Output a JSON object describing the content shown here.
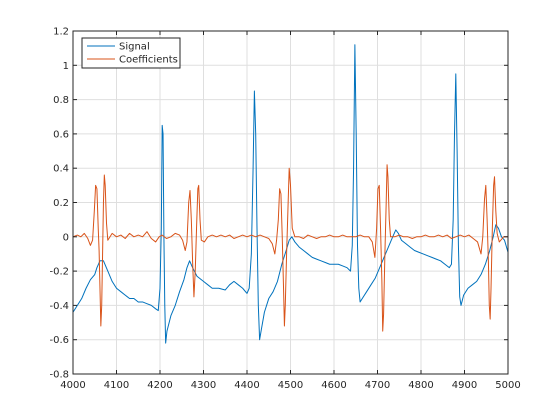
{
  "chart_data": {
    "type": "line",
    "title": "",
    "xlabel": "",
    "ylabel": "",
    "xlim": [
      4000,
      5000
    ],
    "ylim": [
      -0.8,
      1.2
    ],
    "x_ticks": [
      4000,
      4100,
      4200,
      4300,
      4400,
      4500,
      4600,
      4700,
      4800,
      4900,
      5000
    ],
    "y_ticks": [
      -0.8,
      -0.6,
      -0.4,
      -0.2,
      0,
      0.2,
      0.4,
      0.6,
      0.8,
      1,
      1.2
    ],
    "x_tick_labels": [
      "4000",
      "4100",
      "4200",
      "4300",
      "4400",
      "4500",
      "4600",
      "4700",
      "4800",
      "4900",
      "5000"
    ],
    "y_tick_labels": [
      "-0.8",
      "-0.6",
      "-0.4",
      "-0.2",
      "0",
      "0.2",
      "0.4",
      "0.6",
      "0.8",
      "1",
      "1.2"
    ],
    "grid": true,
    "legend_position": "top-left",
    "series": [
      {
        "name": "Signal",
        "color": "#0072BD",
        "points": [
          [
            4000,
            -0.44
          ],
          [
            4010,
            -0.4
          ],
          [
            4020,
            -0.36
          ],
          [
            4030,
            -0.3
          ],
          [
            4040,
            -0.25
          ],
          [
            4050,
            -0.22
          ],
          [
            4055,
            -0.18
          ],
          [
            4062,
            -0.14
          ],
          [
            4070,
            -0.14
          ],
          [
            4080,
            -0.2
          ],
          [
            4090,
            -0.26
          ],
          [
            4100,
            -0.3
          ],
          [
            4110,
            -0.32
          ],
          [
            4120,
            -0.34
          ],
          [
            4130,
            -0.36
          ],
          [
            4140,
            -0.36
          ],
          [
            4150,
            -0.38
          ],
          [
            4160,
            -0.38
          ],
          [
            4170,
            -0.39
          ],
          [
            4180,
            -0.4
          ],
          [
            4190,
            -0.42
          ],
          [
            4196,
            -0.43
          ],
          [
            4200,
            -0.3
          ],
          [
            4203,
            0.05
          ],
          [
            4205,
            0.65
          ],
          [
            4207,
            0.6
          ],
          [
            4209,
            0.0
          ],
          [
            4211,
            -0.4
          ],
          [
            4213,
            -0.62
          ],
          [
            4216,
            -0.55
          ],
          [
            4225,
            -0.46
          ],
          [
            4235,
            -0.4
          ],
          [
            4245,
            -0.32
          ],
          [
            4255,
            -0.25
          ],
          [
            4262,
            -0.18
          ],
          [
            4268,
            -0.14
          ],
          [
            4275,
            -0.18
          ],
          [
            4285,
            -0.23
          ],
          [
            4300,
            -0.26
          ],
          [
            4310,
            -0.28
          ],
          [
            4320,
            -0.3
          ],
          [
            4335,
            -0.3
          ],
          [
            4350,
            -0.31
          ],
          [
            4360,
            -0.28
          ],
          [
            4370,
            -0.26
          ],
          [
            4380,
            -0.28
          ],
          [
            4390,
            -0.3
          ],
          [
            4400,
            -0.33
          ],
          [
            4405,
            -0.3
          ],
          [
            4410,
            -0.1
          ],
          [
            4414,
            0.4
          ],
          [
            4417,
            0.85
          ],
          [
            4420,
            0.6
          ],
          [
            4423,
            0.05
          ],
          [
            4426,
            -0.4
          ],
          [
            4429,
            -0.6
          ],
          [
            4433,
            -0.54
          ],
          [
            4440,
            -0.44
          ],
          [
            4450,
            -0.36
          ],
          [
            4460,
            -0.32
          ],
          [
            4470,
            -0.26
          ],
          [
            4480,
            -0.16
          ],
          [
            4490,
            -0.08
          ],
          [
            4497,
            -0.02
          ],
          [
            4503,
            0.0
          ],
          [
            4510,
            -0.03
          ],
          [
            4520,
            -0.06
          ],
          [
            4530,
            -0.08
          ],
          [
            4540,
            -0.1
          ],
          [
            4550,
            -0.12
          ],
          [
            4560,
            -0.13
          ],
          [
            4570,
            -0.14
          ],
          [
            4580,
            -0.15
          ],
          [
            4590,
            -0.16
          ],
          [
            4600,
            -0.16
          ],
          [
            4610,
            -0.16
          ],
          [
            4620,
            -0.17
          ],
          [
            4630,
            -0.18
          ],
          [
            4638,
            -0.2
          ],
          [
            4642,
            -0.05
          ],
          [
            4645,
            0.4
          ],
          [
            4648,
            1.12
          ],
          [
            4651,
            0.6
          ],
          [
            4654,
            -0.05
          ],
          [
            4657,
            -0.3
          ],
          [
            4660,
            -0.38
          ],
          [
            4665,
            -0.36
          ],
          [
            4675,
            -0.32
          ],
          [
            4685,
            -0.28
          ],
          [
            4695,
            -0.24
          ],
          [
            4705,
            -0.18
          ],
          [
            4715,
            -0.12
          ],
          [
            4725,
            -0.06
          ],
          [
            4735,
            0.0
          ],
          [
            4742,
            0.04
          ],
          [
            4748,
            0.02
          ],
          [
            4755,
            -0.02
          ],
          [
            4765,
            -0.04
          ],
          [
            4775,
            -0.06
          ],
          [
            4785,
            -0.08
          ],
          [
            4795,
            -0.09
          ],
          [
            4805,
            -0.1
          ],
          [
            4815,
            -0.11
          ],
          [
            4825,
            -0.12
          ],
          [
            4835,
            -0.13
          ],
          [
            4845,
            -0.14
          ],
          [
            4855,
            -0.16
          ],
          [
            4865,
            -0.18
          ],
          [
            4870,
            -0.16
          ],
          [
            4874,
            0.1
          ],
          [
            4877,
            0.6
          ],
          [
            4880,
            0.95
          ],
          [
            4883,
            0.5
          ],
          [
            4886,
            -0.05
          ],
          [
            4889,
            -0.35
          ],
          [
            4892,
            -0.4
          ],
          [
            4898,
            -0.34
          ],
          [
            4908,
            -0.3
          ],
          [
            4918,
            -0.28
          ],
          [
            4928,
            -0.26
          ],
          [
            4938,
            -0.22
          ],
          [
            4948,
            -0.16
          ],
          [
            4958,
            -0.08
          ],
          [
            4966,
            0.0
          ],
          [
            4972,
            0.07
          ],
          [
            4978,
            0.05
          ],
          [
            4985,
            0.0
          ],
          [
            4992,
            -0.02
          ],
          [
            5000,
            -0.09
          ]
        ]
      },
      {
        "name": "Coefficients",
        "color": "#D95319",
        "points": [
          [
            4000,
            0.0
          ],
          [
            4010,
            0.01
          ],
          [
            4018,
            0.0
          ],
          [
            4026,
            0.02
          ],
          [
            4034,
            -0.01
          ],
          [
            4040,
            -0.05
          ],
          [
            4045,
            -0.02
          ],
          [
            4049,
            0.15
          ],
          [
            4052,
            0.3
          ],
          [
            4055,
            0.28
          ],
          [
            4058,
            0.05
          ],
          [
            4060,
            -0.08
          ],
          [
            4062,
            -0.3
          ],
          [
            4064,
            -0.52
          ],
          [
            4066,
            -0.4
          ],
          [
            4068,
            -0.1
          ],
          [
            4070,
            0.2
          ],
          [
            4072,
            0.36
          ],
          [
            4074,
            0.3
          ],
          [
            4077,
            0.08
          ],
          [
            4080,
            -0.02
          ],
          [
            4090,
            0.02
          ],
          [
            4100,
            0.0
          ],
          [
            4110,
            0.01
          ],
          [
            4120,
            -0.01
          ],
          [
            4130,
            0.02
          ],
          [
            4140,
            0.0
          ],
          [
            4150,
            0.01
          ],
          [
            4160,
            0.0
          ],
          [
            4170,
            0.03
          ],
          [
            4180,
            -0.01
          ],
          [
            4190,
            -0.03
          ],
          [
            4198,
            0.0
          ],
          [
            4205,
            0.01
          ],
          [
            4215,
            -0.01
          ],
          [
            4225,
            0.0
          ],
          [
            4235,
            0.02
          ],
          [
            4245,
            0.01
          ],
          [
            4252,
            -0.02
          ],
          [
            4258,
            -0.08
          ],
          [
            4262,
            -0.03
          ],
          [
            4266,
            0.2
          ],
          [
            4269,
            0.27
          ],
          [
            4272,
            0.1
          ],
          [
            4275,
            -0.15
          ],
          [
            4278,
            -0.35
          ],
          [
            4281,
            -0.2
          ],
          [
            4284,
            0.05
          ],
          [
            4287,
            0.28
          ],
          [
            4289,
            0.3
          ],
          [
            4292,
            0.1
          ],
          [
            4295,
            -0.02
          ],
          [
            4302,
            -0.03
          ],
          [
            4310,
            0.0
          ],
          [
            4320,
            0.01
          ],
          [
            4330,
            0.0
          ],
          [
            4340,
            0.01
          ],
          [
            4350,
            0.0
          ],
          [
            4360,
            0.01
          ],
          [
            4370,
            -0.01
          ],
          [
            4380,
            0.0
          ],
          [
            4390,
            0.01
          ],
          [
            4400,
            0.0
          ],
          [
            4410,
            0.01
          ],
          [
            4420,
            0.0
          ],
          [
            4430,
            0.01
          ],
          [
            4440,
            0.0
          ],
          [
            4450,
            -0.01
          ],
          [
            4458,
            -0.04
          ],
          [
            4464,
            -0.1
          ],
          [
            4468,
            -0.02
          ],
          [
            4472,
            0.1
          ],
          [
            4475,
            0.28
          ],
          [
            4478,
            0.25
          ],
          [
            4481,
            0.0
          ],
          [
            4484,
            -0.3
          ],
          [
            4486,
            -0.52
          ],
          [
            4488,
            -0.4
          ],
          [
            4491,
            -0.1
          ],
          [
            4494,
            0.15
          ],
          [
            4497,
            0.4
          ],
          [
            4500,
            0.3
          ],
          [
            4504,
            0.05
          ],
          [
            4510,
            0.0
          ],
          [
            4520,
            0.0
          ],
          [
            4530,
            -0.01
          ],
          [
            4540,
            0.01
          ],
          [
            4550,
            0.0
          ],
          [
            4560,
            -0.01
          ],
          [
            4570,
            0.0
          ],
          [
            4580,
            0.0
          ],
          [
            4590,
            0.01
          ],
          [
            4600,
            0.0
          ],
          [
            4610,
            0.0
          ],
          [
            4620,
            0.01
          ],
          [
            4630,
            0.0
          ],
          [
            4640,
            0.0
          ],
          [
            4650,
            0.0
          ],
          [
            4660,
            0.01
          ],
          [
            4670,
            0.0
          ],
          [
            4680,
            0.0
          ],
          [
            4688,
            -0.03
          ],
          [
            4694,
            -0.12
          ],
          [
            4698,
            0.05
          ],
          [
            4701,
            0.28
          ],
          [
            4704,
            0.3
          ],
          [
            4707,
            0.05
          ],
          [
            4710,
            -0.25
          ],
          [
            4712,
            -0.55
          ],
          [
            4714,
            -0.45
          ],
          [
            4717,
            -0.1
          ],
          [
            4720,
            0.2
          ],
          [
            4722,
            0.42
          ],
          [
            4724,
            0.35
          ],
          [
            4727,
            0.1
          ],
          [
            4730,
            0.0
          ],
          [
            4740,
            0.0
          ],
          [
            4750,
            0.01
          ],
          [
            4760,
            0.0
          ],
          [
            4770,
            0.0
          ],
          [
            4780,
            -0.01
          ],
          [
            4790,
            0.0
          ],
          [
            4800,
            0.0
          ],
          [
            4810,
            0.01
          ],
          [
            4820,
            0.0
          ],
          [
            4830,
            0.0
          ],
          [
            4840,
            0.01
          ],
          [
            4850,
            0.0
          ],
          [
            4860,
            0.01
          ],
          [
            4870,
            -0.01
          ],
          [
            4880,
            0.0
          ],
          [
            4890,
            0.01
          ],
          [
            4900,
            0.0
          ],
          [
            4910,
            0.01
          ],
          [
            4920,
            -0.01
          ],
          [
            4930,
            -0.03
          ],
          [
            4938,
            -0.1
          ],
          [
            4942,
            0.0
          ],
          [
            4946,
            0.22
          ],
          [
            4949,
            0.3
          ],
          [
            4952,
            0.1
          ],
          [
            4955,
            -0.15
          ],
          [
            4957,
            -0.4
          ],
          [
            4959,
            -0.48
          ],
          [
            4961,
            -0.3
          ],
          [
            4964,
            0.05
          ],
          [
            4967,
            0.3
          ],
          [
            4969,
            0.35
          ],
          [
            4972,
            0.15
          ],
          [
            4975,
            0.02
          ],
          [
            4980,
            -0.03
          ],
          [
            4990,
            0.0
          ],
          [
            5000,
            0.0
          ]
        ]
      }
    ]
  }
}
